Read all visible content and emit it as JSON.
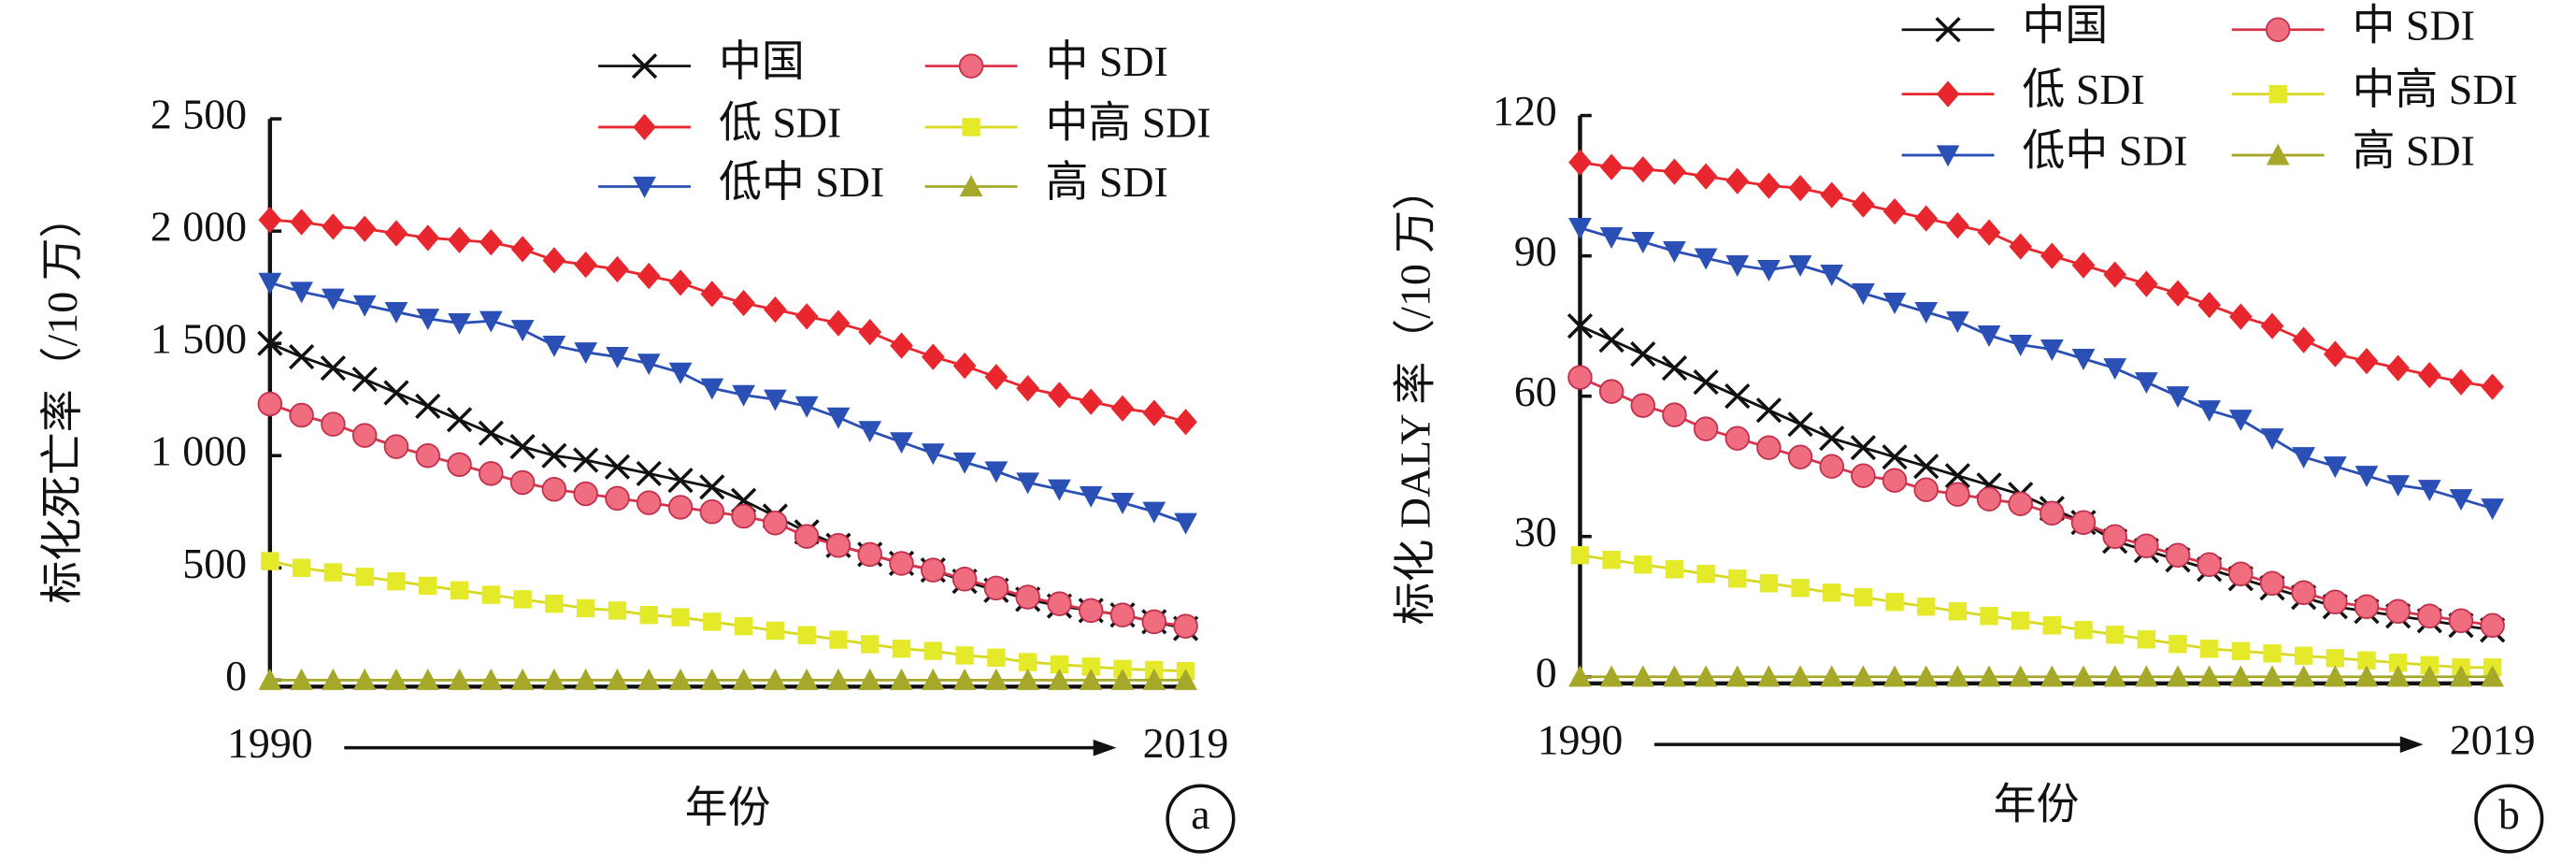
{
  "chart_data": [
    {
      "type": "line",
      "ylabel": "标化死亡率（/10 万）",
      "xlabel": "年份",
      "annotation": "a",
      "x": [
        1990,
        1991,
        1992,
        1993,
        1994,
        1995,
        1996,
        1997,
        1998,
        1999,
        2000,
        2001,
        2002,
        2003,
        2004,
        2005,
        2006,
        2007,
        2008,
        2009,
        2010,
        2011,
        2012,
        2013,
        2014,
        2015,
        2016,
        2017,
        2018,
        2019
      ],
      "xlim": [
        1990,
        2019
      ],
      "xticks": [
        1990,
        2019
      ],
      "ylim": [
        0,
        2500
      ],
      "yticks": [
        0,
        500,
        {
          "value": 1000,
          "label": "1 000"
        },
        {
          "value": 1500,
          "label": "1 500"
        },
        {
          "value": 2000,
          "label": "2 000"
        },
        {
          "value": 2500,
          "label": "2 500"
        }
      ],
      "series": [
        {
          "name": "中国",
          "color": "#111111",
          "marker": "x",
          "values": [
            1500,
            1440,
            1390,
            1340,
            1280,
            1220,
            1160,
            1100,
            1040,
            1000,
            980,
            950,
            920,
            890,
            860,
            800,
            730,
            660,
            600,
            560,
            520,
            490,
            440,
            400,
            360,
            330,
            310,
            290,
            260,
            230
          ]
        },
        {
          "name": "低 SDI",
          "color": "#e8262e",
          "marker": "diamond",
          "values": [
            2050,
            2040,
            2020,
            2010,
            1990,
            1970,
            1960,
            1950,
            1920,
            1870,
            1850,
            1830,
            1800,
            1770,
            1720,
            1680,
            1650,
            1620,
            1590,
            1550,
            1490,
            1440,
            1400,
            1350,
            1300,
            1270,
            1240,
            1210,
            1190,
            1150
          ]
        },
        {
          "name": "低中 SDI",
          "color": "#2a4fb5",
          "marker": "tridown",
          "values": [
            1770,
            1730,
            1700,
            1670,
            1640,
            1610,
            1590,
            1600,
            1560,
            1490,
            1460,
            1440,
            1410,
            1370,
            1300,
            1270,
            1250,
            1220,
            1170,
            1110,
            1060,
            1010,
            970,
            930,
            880,
            850,
            820,
            790,
            750,
            700
          ]
        },
        {
          "name": "中 SDI",
          "color": "#f06d80",
          "marker": "circle",
          "values": [
            1230,
            1180,
            1140,
            1090,
            1040,
            1000,
            960,
            920,
            880,
            850,
            830,
            810,
            790,
            770,
            750,
            730,
            700,
            640,
            600,
            560,
            520,
            490,
            450,
            410,
            370,
            340,
            310,
            290,
            260,
            240
          ]
        },
        {
          "name": "中高 SDI",
          "color": "#e4ea2a",
          "marker": "square",
          "values": [
            530,
            500,
            480,
            460,
            440,
            420,
            400,
            380,
            360,
            340,
            320,
            310,
            290,
            280,
            260,
            240,
            220,
            200,
            180,
            160,
            140,
            130,
            110,
            100,
            80,
            70,
            60,
            50,
            45,
            40
          ]
        },
        {
          "name": "高 SDI",
          "color": "#a6a82a",
          "marker": "triup",
          "values": [
            0,
            0,
            0,
            0,
            0,
            0,
            0,
            0,
            0,
            0,
            0,
            0,
            0,
            0,
            0,
            0,
            0,
            0,
            0,
            0,
            0,
            0,
            0,
            0,
            0,
            0,
            0,
            0,
            0,
            0
          ]
        }
      ]
    },
    {
      "type": "line",
      "ylabel": "标化 DALY 率（/10 万）",
      "xlabel": "年份",
      "annotation": "b",
      "x": [
        1990,
        1991,
        1992,
        1993,
        1994,
        1995,
        1996,
        1997,
        1998,
        1999,
        2000,
        2001,
        2002,
        2003,
        2004,
        2005,
        2006,
        2007,
        2008,
        2009,
        2010,
        2011,
        2012,
        2013,
        2014,
        2015,
        2016,
        2017,
        2018,
        2019
      ],
      "xlim": [
        1990,
        2019
      ],
      "xticks": [
        1990,
        2019
      ],
      "ylim": [
        0,
        120
      ],
      "yticks": [
        0,
        30,
        60,
        90,
        120
      ],
      "series": [
        {
          "name": "中国",
          "color": "#111111",
          "marker": "x",
          "values": [
            75,
            72,
            69,
            66,
            63,
            60,
            57,
            54,
            51,
            49,
            47,
            45,
            43,
            41,
            39,
            36,
            33,
            29,
            27,
            25,
            23,
            21,
            19,
            17,
            15,
            14,
            13,
            12,
            11,
            10
          ]
        },
        {
          "name": "低 SDI",
          "color": "#e8262e",
          "marker": "diamond",
          "values": [
            110,
            109,
            108.5,
            108,
            107,
            106,
            105,
            104.5,
            103,
            101,
            99.5,
            98,
            96.5,
            95,
            92,
            90,
            88,
            86,
            84,
            82,
            79.5,
            77,
            75,
            72,
            69,
            67.5,
            66,
            64.5,
            63,
            62
          ]
        },
        {
          "name": "低中 SDI",
          "color": "#2a4fb5",
          "marker": "tridown",
          "values": [
            96,
            94,
            93,
            91,
            89.5,
            88,
            87,
            88,
            86,
            82,
            80,
            78,
            76,
            73,
            71,
            70,
            68,
            66,
            63,
            60,
            57,
            55,
            51,
            47,
            45,
            43,
            41,
            40,
            38,
            36
          ]
        },
        {
          "name": "中 SDI",
          "color": "#f06d80",
          "marker": "circle",
          "values": [
            64,
            61,
            58,
            56,
            53,
            51,
            49,
            47,
            45,
            43,
            42,
            40,
            39,
            38,
            37,
            35,
            33,
            30,
            28,
            26,
            24,
            22,
            20,
            18,
            16,
            15,
            14,
            13,
            12,
            11
          ]
        },
        {
          "name": "中高 SDI",
          "color": "#e4ea2a",
          "marker": "square",
          "values": [
            26,
            25,
            24,
            23,
            22,
            21,
            20,
            19,
            18,
            17,
            16,
            15,
            14,
            13,
            12,
            11,
            10,
            9,
            8,
            7,
            6,
            5.5,
            5,
            4.5,
            4,
            3.5,
            3,
            2.5,
            2,
            2
          ]
        },
        {
          "name": "高 SDI",
          "color": "#a6a82a",
          "marker": "triup",
          "values": [
            0,
            0,
            0,
            0,
            0,
            0,
            0,
            0,
            0,
            0,
            0,
            0,
            0,
            0,
            0,
            0,
            0,
            0,
            0,
            0,
            0,
            0,
            0,
            0,
            0,
            0,
            0,
            0,
            0,
            0
          ]
        }
      ]
    }
  ]
}
